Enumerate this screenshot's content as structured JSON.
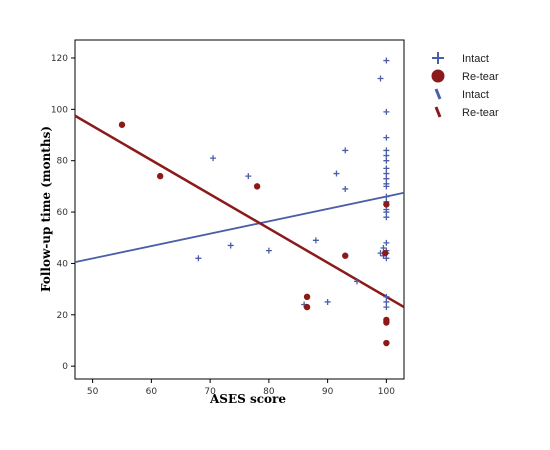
{
  "chart_data": {
    "type": "scatter",
    "xlabel": "ASES score",
    "ylabel": "Follow-up time (months)",
    "xlim": [
      47,
      103
    ],
    "ylim": [
      -5,
      127
    ],
    "x_ticks": [
      50,
      60,
      70,
      80,
      90,
      100
    ],
    "y_ticks": [
      0,
      20,
      40,
      60,
      80,
      100,
      120
    ],
    "grid": false,
    "legend_position": "right",
    "series": [
      {
        "name": "Intact",
        "marker": "plus",
        "color": "#4a5fa8",
        "points": [
          [
            68,
            42
          ],
          [
            70.5,
            81
          ],
          [
            73.5,
            47
          ],
          [
            76.5,
            74
          ],
          [
            80,
            45
          ],
          [
            86,
            24
          ],
          [
            88,
            49
          ],
          [
            90,
            25
          ],
          [
            91.5,
            75
          ],
          [
            93,
            69
          ],
          [
            93,
            84
          ],
          [
            95,
            33
          ],
          [
            99,
            112
          ],
          [
            99,
            44
          ],
          [
            99.5,
            46
          ],
          [
            99.5,
            43
          ],
          [
            100,
            119
          ],
          [
            100,
            99
          ],
          [
            100,
            89
          ],
          [
            100,
            84
          ],
          [
            100,
            82
          ],
          [
            100,
            80
          ],
          [
            100,
            77
          ],
          [
            100,
            75
          ],
          [
            100,
            73
          ],
          [
            100,
            71
          ],
          [
            100,
            70
          ],
          [
            100,
            66
          ],
          [
            100,
            64
          ],
          [
            100,
            61
          ],
          [
            100,
            60
          ],
          [
            100,
            58
          ],
          [
            100,
            48
          ],
          [
            100,
            45
          ],
          [
            100,
            44
          ],
          [
            100,
            42
          ],
          [
            100,
            27
          ],
          [
            100,
            25
          ],
          [
            100,
            23
          ]
        ]
      },
      {
        "name": "Re-tear",
        "marker": "circle",
        "color": "#8b1a1a",
        "points": [
          [
            55,
            94
          ],
          [
            61.5,
            74
          ],
          [
            78,
            70
          ],
          [
            86.5,
            27
          ],
          [
            86.5,
            23
          ],
          [
            93,
            43
          ],
          [
            99.8,
            44
          ],
          [
            100,
            63
          ],
          [
            100,
            18
          ],
          [
            100,
            17
          ],
          [
            100,
            9
          ]
        ]
      }
    ],
    "fit_lines": [
      {
        "name": "Intact",
        "color": "#4a5fa8",
        "x": [
          47,
          103
        ],
        "y": [
          40.5,
          67.5
        ]
      },
      {
        "name": "Re-tear",
        "color": "#8b1a1a",
        "x": [
          47,
          103
        ],
        "y": [
          97.5,
          23
        ]
      }
    ]
  }
}
